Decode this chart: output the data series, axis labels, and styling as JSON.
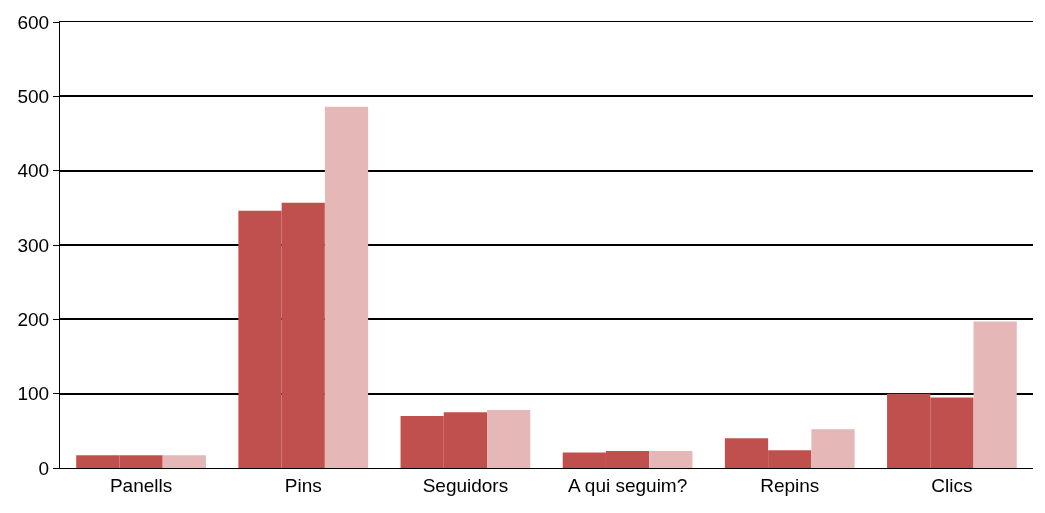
{
  "chart_data": {
    "type": "bar",
    "categories": [
      "Panells",
      "Pins",
      "Seguidors",
      "A qui seguim?",
      "Repins",
      "Clics"
    ],
    "series": [
      {
        "color": "#c0504d",
        "values": [
          17,
          346,
          70,
          21,
          40,
          100
        ]
      },
      {
        "color": "#c0504d",
        "values": [
          17,
          357,
          75,
          23,
          24,
          95
        ]
      },
      {
        "color": "#e6b7b7",
        "values": [
          17,
          486,
          78,
          23,
          52,
          197
        ]
      }
    ],
    "ylim": [
      0,
      600
    ],
    "yticks": [
      0,
      100,
      200,
      300,
      400,
      500,
      600
    ],
    "grid": "y"
  }
}
